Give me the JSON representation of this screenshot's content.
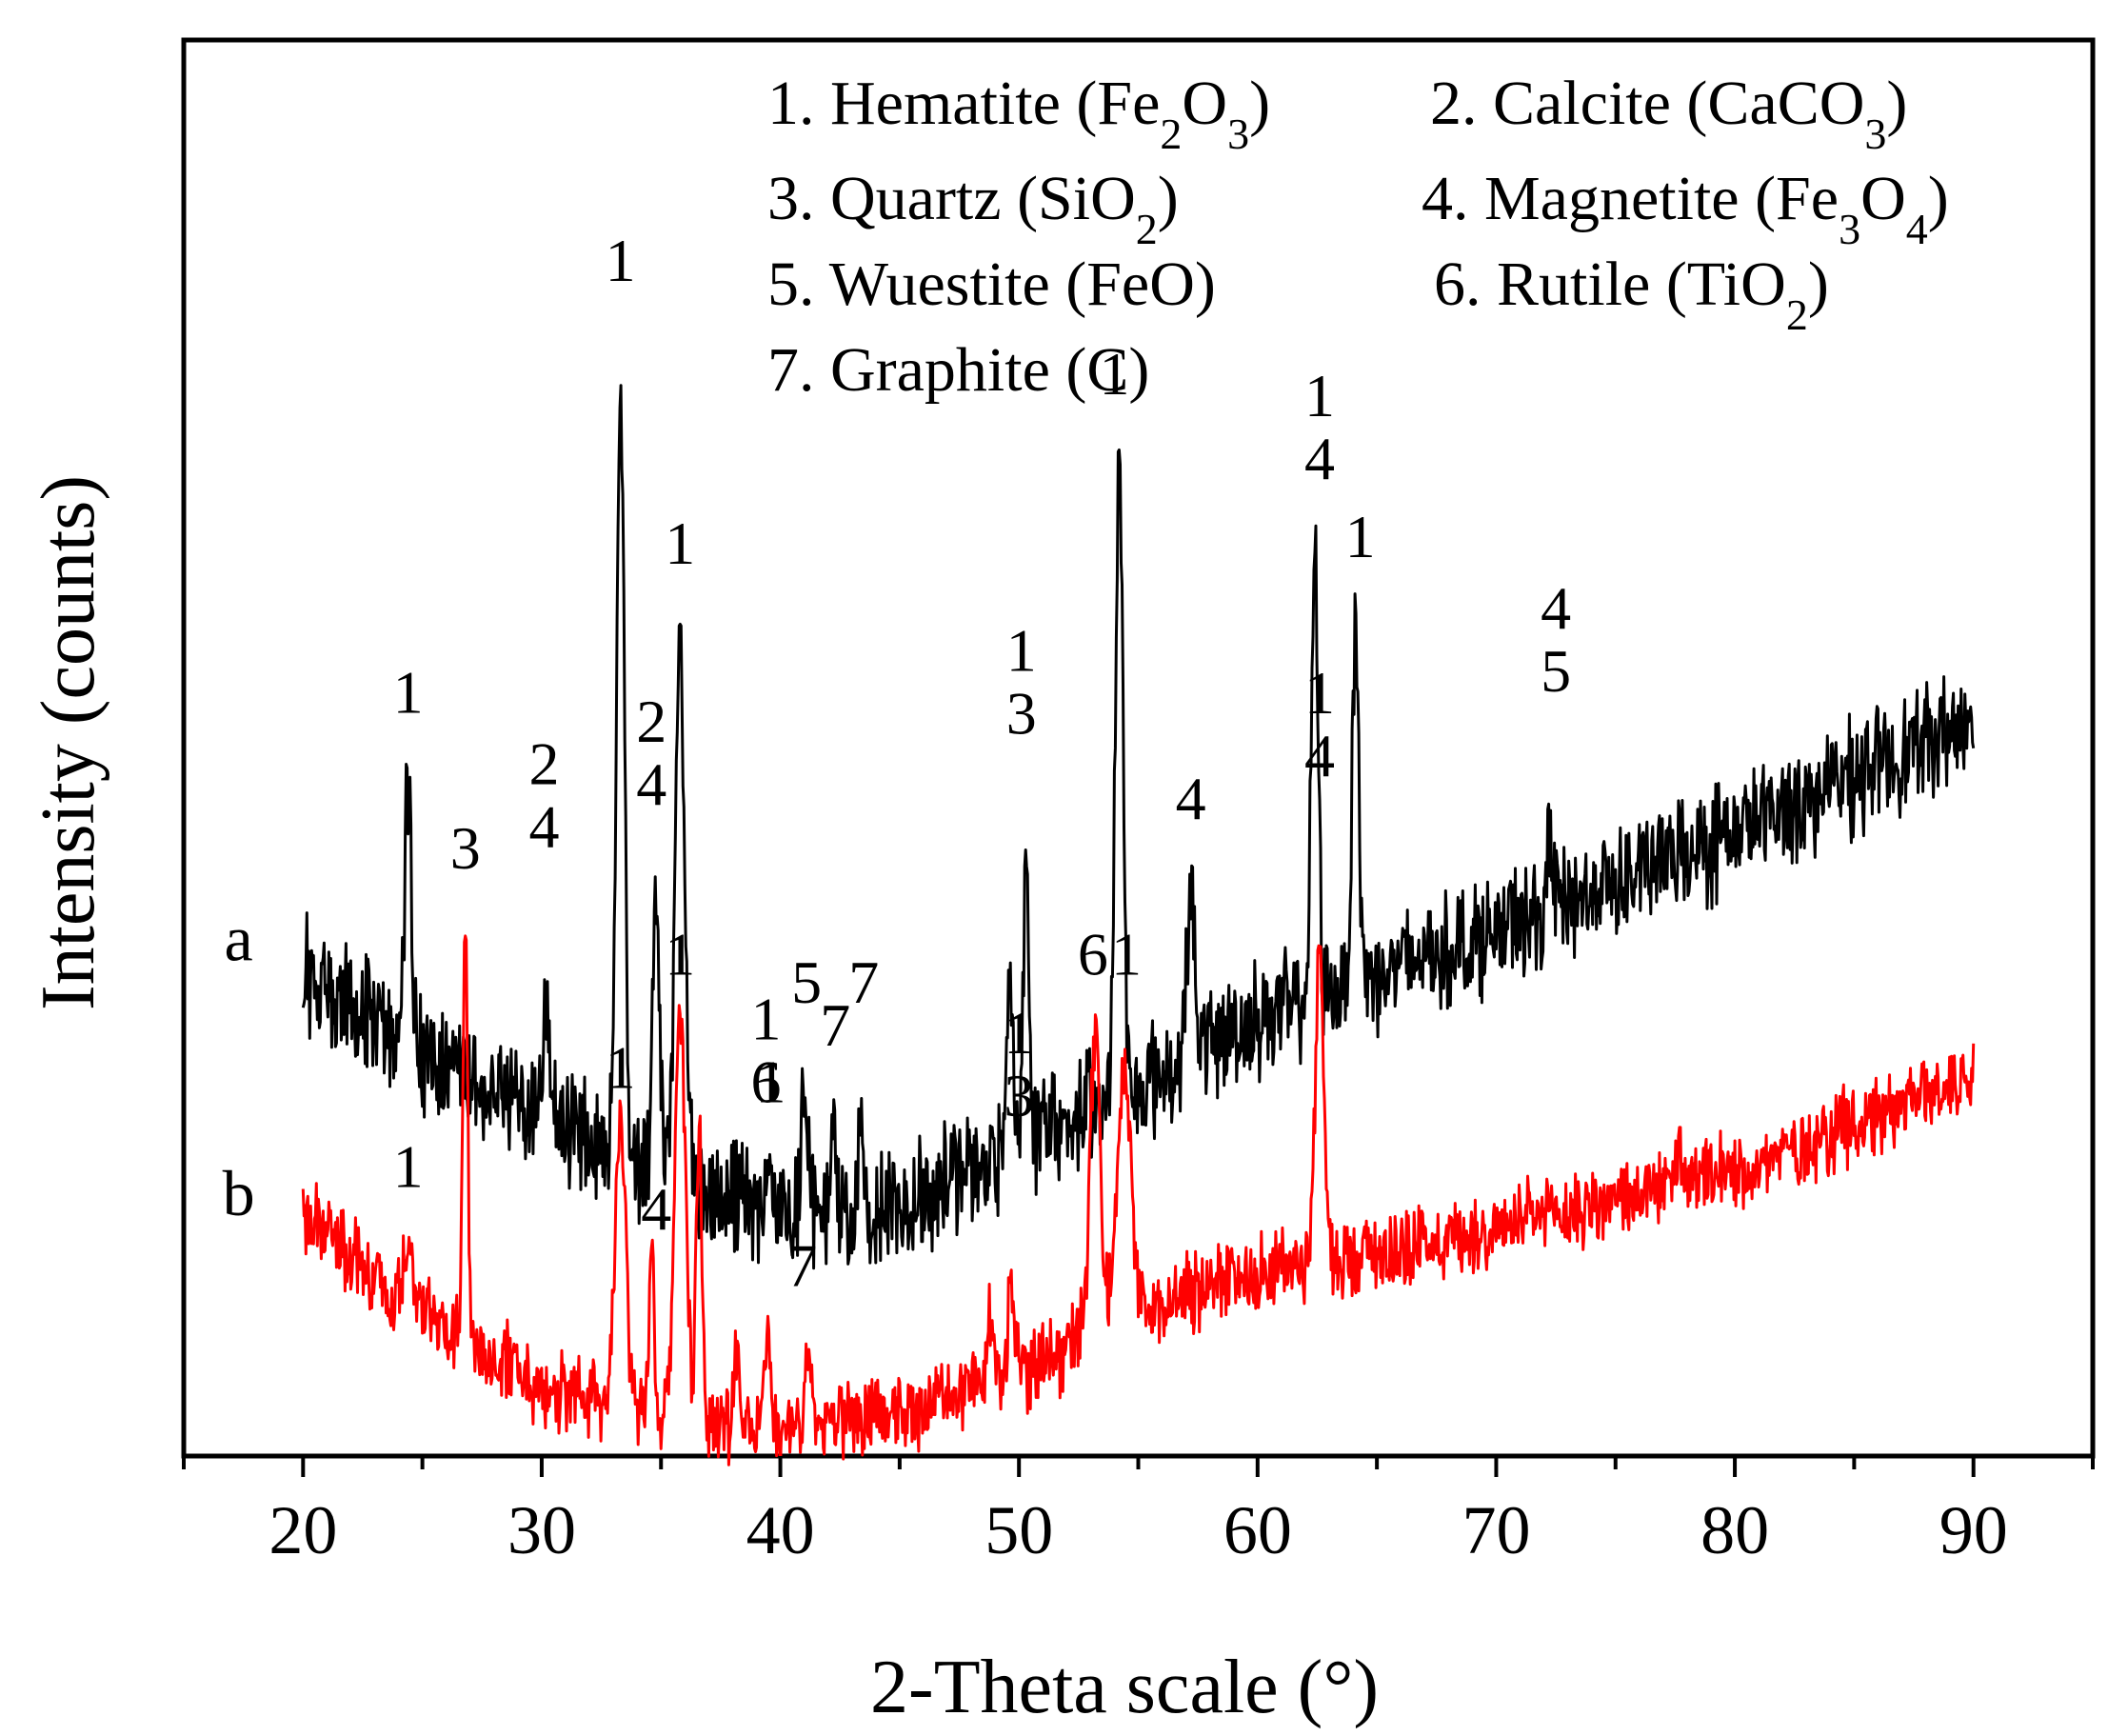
{
  "chart_data": {
    "type": "line",
    "xlabel": "2-Theta scale (°)",
    "ylabel": "Intensity (counts)",
    "xlim": [
      15,
      95
    ],
    "xticks": [
      20,
      30,
      40,
      50,
      60,
      70,
      80,
      90
    ],
    "ylim": [
      0,
      100
    ],
    "grid": false,
    "legend": [
      {
        "id": "leg-1",
        "num": "1. ",
        "name": "Hematite",
        "formula": [
          [
            "(Fe",
            "n"
          ],
          [
            "2",
            "sub"
          ],
          [
            "O",
            "n"
          ],
          [
            "3",
            "sub"
          ],
          [
            ")",
            "n"
          ]
        ]
      },
      {
        "id": "leg-2",
        "num": "2. ",
        "name": "Calcite",
        "formula": [
          [
            "(CaCO",
            "n"
          ],
          [
            "3",
            "sub"
          ],
          [
            ")",
            "n"
          ]
        ]
      },
      {
        "id": "leg-3",
        "num": "3. ",
        "name": "Quartz",
        "formula": [
          [
            "(SiO",
            "n"
          ],
          [
            "2",
            "sub"
          ],
          [
            ")",
            "n"
          ]
        ]
      },
      {
        "id": "leg-4",
        "num": "4. ",
        "name": "Magnetite",
        "formula": [
          [
            "(Fe",
            "n"
          ],
          [
            "3",
            "sub"
          ],
          [
            "O",
            "n"
          ],
          [
            "4",
            "sub"
          ],
          [
            ")",
            "n"
          ]
        ]
      },
      {
        "id": "leg-5",
        "num": "5. ",
        "name": "Wuestite",
        "formula": [
          [
            "(FeO)",
            "n"
          ]
        ]
      },
      {
        "id": "leg-6",
        "num": "6. ",
        "name": "Rutile",
        "formula": [
          [
            "(TiO",
            "n"
          ],
          [
            "2",
            "sub"
          ],
          [
            ")",
            "n"
          ]
        ]
      },
      {
        "id": "leg-7",
        "num": "7. ",
        "name": "Graphite",
        "formula": [
          [
            "(C)",
            "n"
          ]
        ]
      }
    ],
    "series": [
      {
        "name": "a",
        "color": "#000000",
        "baseline": [
          [
            20,
            34
          ],
          [
            25,
            28
          ],
          [
            30,
            24
          ],
          [
            38,
            18
          ],
          [
            44,
            17
          ],
          [
            50,
            22
          ],
          [
            55,
            26
          ],
          [
            60,
            31
          ],
          [
            70,
            37
          ],
          [
            80,
            44
          ],
          [
            90,
            52
          ]
        ],
        "noise": 3.2,
        "peaks": [
          {
            "x": 24.4,
            "y": 47,
            "w": 0.15
          },
          {
            "x": 30.2,
            "y": 31,
            "w": 0.18
          },
          {
            "x": 33.3,
            "y": 77,
            "w": 0.16
          },
          {
            "x": 34.8,
            "y": 40,
            "w": 0.14
          },
          {
            "x": 35.8,
            "y": 57,
            "w": 0.2
          },
          {
            "x": 39.5,
            "y": 21,
            "w": 0.1
          },
          {
            "x": 41.0,
            "y": 26,
            "w": 0.12
          },
          {
            "x": 42.2,
            "y": 24,
            "w": 0.1
          },
          {
            "x": 43.4,
            "y": 25,
            "w": 0.1
          },
          {
            "x": 49.6,
            "y": 35,
            "w": 0.12
          },
          {
            "x": 50.3,
            "y": 43,
            "w": 0.12
          },
          {
            "x": 54.2,
            "y": 71,
            "w": 0.16
          },
          {
            "x": 57.2,
            "y": 39,
            "w": 0.18
          },
          {
            "x": 62.4,
            "y": 63,
            "w": 0.14
          },
          {
            "x": 64.1,
            "y": 59,
            "w": 0.14
          },
          {
            "x": 72.3,
            "y": 44,
            "w": 0.12
          }
        ],
        "peak_labels": [
          {
            "x": 24.4,
            "lines": [
              "1"
            ],
            "y": 52.5
          },
          {
            "x": 30.1,
            "lines": [
              "2",
              "4"
            ],
            "y": 43
          },
          {
            "x": 34.6,
            "lines": [
              "2",
              "4"
            ],
            "y": 46
          },
          {
            "x": 33.3,
            "lines": [
              "1"
            ],
            "y": 83
          },
          {
            "x": 35.8,
            "lines": [
              "1"
            ],
            "y": 63
          },
          {
            "x": 39.6,
            "lines": [
              "1"
            ],
            "y": 25
          },
          {
            "x": 41.1,
            "lines": [
              "5"
            ],
            "y": 32
          },
          {
            "x": 42.3,
            "lines": [
              "7"
            ],
            "y": 29
          },
          {
            "x": 43.5,
            "lines": [
              "7"
            ],
            "y": 32
          },
          {
            "x": 50.1,
            "lines": [
              "1",
              "3"
            ],
            "y": 51
          },
          {
            "x": 54.0,
            "lines": [
              "1"
            ],
            "y": 75
          },
          {
            "x": 57.2,
            "lines": [
              "4"
            ],
            "y": 45
          },
          {
            "x": 62.6,
            "lines": [
              "1",
              "4"
            ],
            "y": 69
          },
          {
            "x": 64.3,
            "lines": [
              "1"
            ],
            "y": 63.5
          },
          {
            "x": 72.5,
            "lines": [
              "4",
              "5"
            ],
            "y": 54
          }
        ]
      },
      {
        "name": "b",
        "color": "#ff0000",
        "baseline": [
          [
            20,
            17
          ],
          [
            25,
            10
          ],
          [
            30,
            5
          ],
          [
            38,
            2
          ],
          [
            45,
            3
          ],
          [
            50,
            6
          ],
          [
            55,
            10
          ],
          [
            60,
            13
          ],
          [
            70,
            16
          ],
          [
            80,
            20
          ],
          [
            90,
            27
          ]
        ],
        "noise": 2.2,
        "peaks": [
          {
            "x": 24.4,
            "y": 15,
            "w": 0.2
          },
          {
            "x": 26.8,
            "y": 38,
            "w": 0.1
          },
          {
            "x": 33.3,
            "y": 24,
            "w": 0.22
          },
          {
            "x": 34.6,
            "y": 15,
            "w": 0.1
          },
          {
            "x": 35.8,
            "y": 32,
            "w": 0.22
          },
          {
            "x": 36.6,
            "y": 23,
            "w": 0.12
          },
          {
            "x": 38.2,
            "y": 9,
            "w": 0.1
          },
          {
            "x": 39.5,
            "y": 10,
            "w": 0.1
          },
          {
            "x": 41.2,
            "y": 8,
            "w": 0.12
          },
          {
            "x": 48.8,
            "y": 10,
            "w": 0.15
          },
          {
            "x": 49.7,
            "y": 12,
            "w": 0.15
          },
          {
            "x": 53.2,
            "y": 30,
            "w": 0.22
          },
          {
            "x": 54.4,
            "y": 27,
            "w": 0.3
          },
          {
            "x": 62.6,
            "y": 35,
            "w": 0.18
          },
          {
            "x": 77.6,
            "y": 22,
            "w": 0.1
          }
        ],
        "peak_labels": [
          {
            "x": 24.4,
            "lines": [
              "1"
            ],
            "y": 19
          },
          {
            "x": 26.8,
            "lines": [
              "3"
            ],
            "y": 41.5
          },
          {
            "x": 33.3,
            "lines": [
              "1"
            ],
            "y": 26
          },
          {
            "x": 34.8,
            "lines": [
              "4"
            ],
            "y": 16
          },
          {
            "x": 35.8,
            "lines": [
              "1"
            ],
            "y": 34
          },
          {
            "x": 39.4,
            "lines": [
              "1",
              "6"
            ],
            "y": 25
          },
          {
            "x": 40.9,
            "lines": [
              "7"
            ],
            "y": 12
          },
          {
            "x": 50.0,
            "lines": [
              "1",
              "3"
            ],
            "y": 24
          },
          {
            "x": 53.1,
            "lines": [
              "6"
            ],
            "y": 34
          },
          {
            "x": 54.5,
            "lines": [
              "1"
            ],
            "y": 34
          },
          {
            "x": 62.6,
            "lines": [
              "1",
              "4"
            ],
            "y": 48
          }
        ]
      }
    ],
    "series_labels": [
      {
        "name": "a",
        "x": 17.3,
        "y": 35
      },
      {
        "name": "b",
        "x": 17.3,
        "y": 17
      }
    ]
  }
}
